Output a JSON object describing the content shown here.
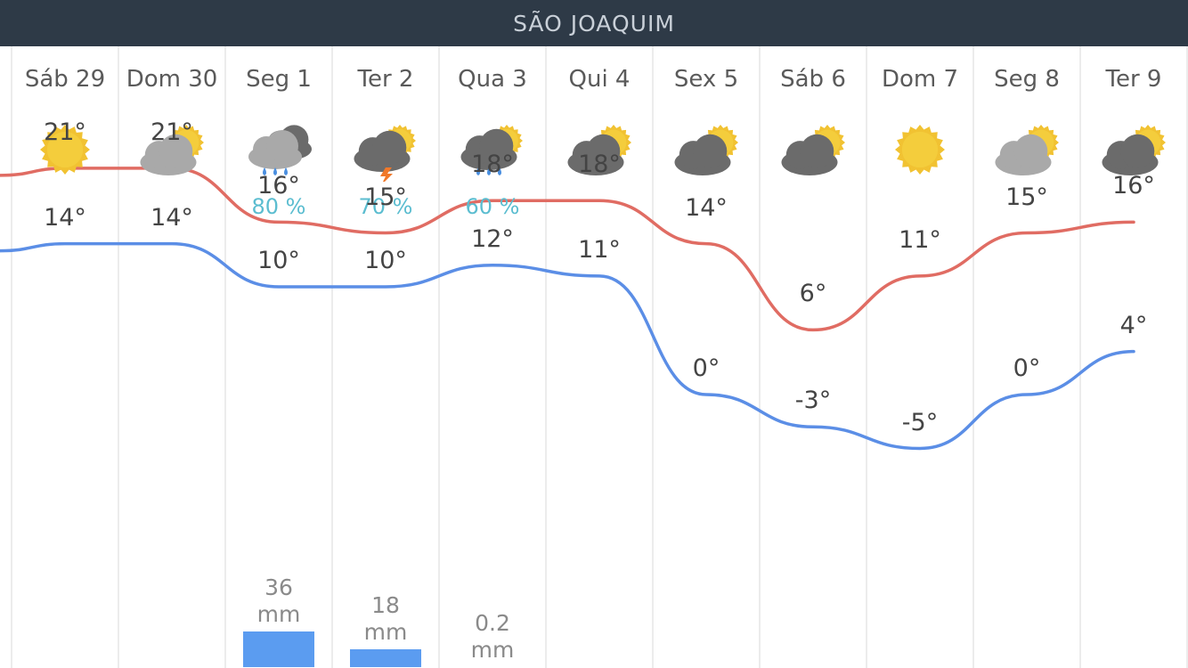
{
  "header": {
    "title": "SÃO JOAQUIM"
  },
  "colors": {
    "high_line": "#e06c63",
    "low_line": "#5b8ee6",
    "precip_bar": "#5b9cf0",
    "probability_text": "#5bbdd0"
  },
  "days": [
    {
      "label": "Sáb 29",
      "icon": "sun-icon",
      "max": "21°",
      "min": "14°",
      "prob": "",
      "precip_value": "",
      "precip_unit": ""
    },
    {
      "label": "Dom 30",
      "icon": "partly-cloudy-light-icon",
      "max": "21°",
      "min": "14°",
      "prob": "",
      "precip_value": "",
      "precip_unit": ""
    },
    {
      "label": "Seg 1",
      "icon": "rain-cloud-icon",
      "max": "16°",
      "min": "10°",
      "prob": "80 %",
      "precip_value": "36",
      "precip_unit": "mm"
    },
    {
      "label": "Ter 2",
      "icon": "thunderstorm-icon",
      "max": "15°",
      "min": "10°",
      "prob": "70 %",
      "precip_value": "18",
      "precip_unit": "mm"
    },
    {
      "label": "Qua 3",
      "icon": "sun-rain-cloud-icon",
      "max": "18°",
      "min": "12°",
      "prob": "60 %",
      "precip_value": "0.2",
      "precip_unit": "mm"
    },
    {
      "label": "Qui 4",
      "icon": "partly-cloudy-dark-icon",
      "max": "18°",
      "min": "11°",
      "prob": "",
      "precip_value": "",
      "precip_unit": ""
    },
    {
      "label": "Sex 5",
      "icon": "partly-cloudy-dark-icon",
      "max": "14°",
      "min": "0°",
      "prob": "",
      "precip_value": "",
      "precip_unit": ""
    },
    {
      "label": "Sáb 6",
      "icon": "partly-cloudy-dark-icon",
      "max": "6°",
      "min": "-3°",
      "prob": "",
      "precip_value": "",
      "precip_unit": ""
    },
    {
      "label": "Dom 7",
      "icon": "sun-icon",
      "max": "11°",
      "min": "-5°",
      "prob": "",
      "precip_value": "",
      "precip_unit": ""
    },
    {
      "label": "Seg 8",
      "icon": "partly-cloudy-light-icon",
      "max": "15°",
      "min": "0°",
      "prob": "",
      "precip_value": "",
      "precip_unit": ""
    },
    {
      "label": "Ter 9",
      "icon": "partly-cloudy-dark-icon",
      "max": "16°",
      "min": "4°",
      "prob": "",
      "precip_value": "",
      "precip_unit": ""
    }
  ],
  "chart_data": {
    "type": "line",
    "categories": [
      "Sáb 29",
      "Dom 30",
      "Seg 1",
      "Ter 2",
      "Qua 3",
      "Qui 4",
      "Sex 5",
      "Sáb 6",
      "Dom 7",
      "Seg 8",
      "Ter 9"
    ],
    "series": [
      {
        "values": [
          21,
          21,
          16,
          15,
          18,
          18,
          14,
          6,
          11,
          15,
          16
        ]
      },
      {
        "values": [
          14,
          14,
          10,
          10,
          12,
          11,
          0,
          -3,
          -5,
          0,
          4
        ]
      }
    ],
    "precipitation_mm": [
      0,
      0,
      36,
      18,
      0.2,
      0,
      0,
      0,
      0,
      0,
      0
    ],
    "grid": "vertical"
  }
}
